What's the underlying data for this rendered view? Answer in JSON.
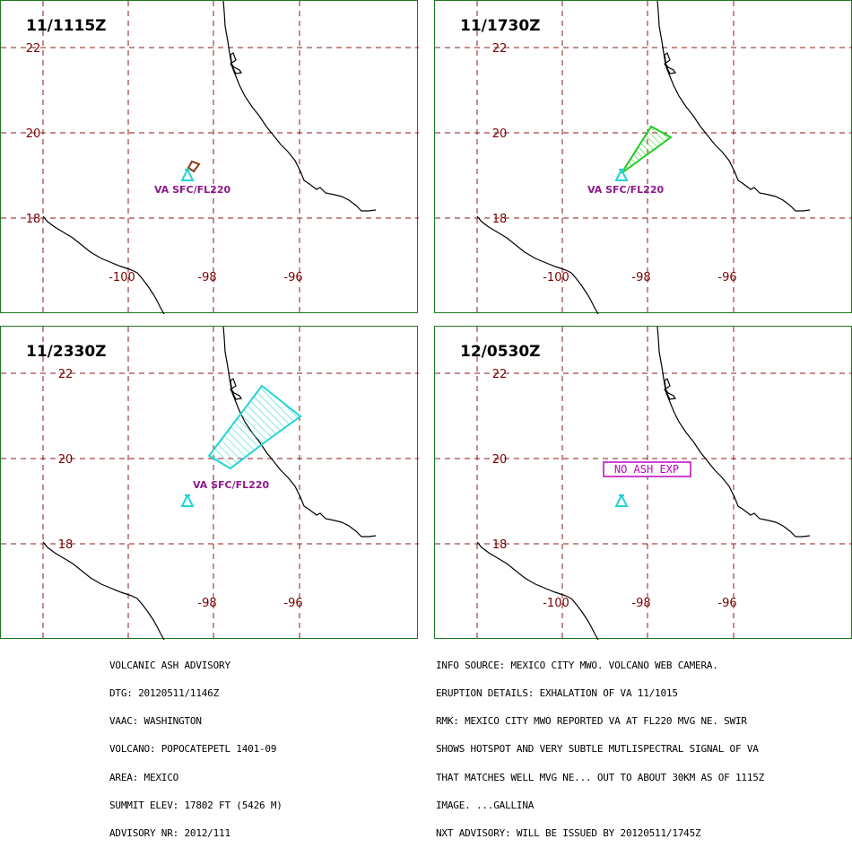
{
  "panels": [
    {
      "title": "11/1115Z",
      "lat_labels": [
        "22",
        "20",
        "18"
      ],
      "lon_labels": [
        "-100",
        "-98",
        "-96"
      ],
      "va_label": "VA SFC/FL220",
      "ash_polygon": {
        "color": "#8b3a1a",
        "hatched": false
      }
    },
    {
      "title": "11/1730Z",
      "lat_labels": [
        "22",
        "20",
        "18"
      ],
      "lon_labels": [
        "-100",
        "-98",
        "-96"
      ],
      "va_label": "VA SFC/FL220",
      "ash_polygon": {
        "color": "#22cc22",
        "hatched": true
      }
    },
    {
      "title": "11/2330Z",
      "lat_labels": [
        "22",
        "20",
        "18"
      ],
      "lon_labels": [
        "-98",
        "-96"
      ],
      "va_label": "VA SFC/FL220",
      "ash_polygon": {
        "color": "#22d4d4",
        "hatched": true
      }
    },
    {
      "title": "12/0530Z",
      "lat_labels": [
        "22",
        "20",
        "18"
      ],
      "lon_labels": [
        "-100",
        "-98",
        "-96"
      ],
      "no_ash_label": "NO ASH EXP"
    }
  ],
  "advisory_left": [
    "VOLCANIC ASH ADVISORY",
    "DTG: 20120511/1146Z",
    "VAAC: WASHINGTON",
    "VOLCANO: POPOCATEPETL 1401-09",
    "AREA: MEXICO",
    "SUMMIT ELEV: 17802 FT (5426 M)",
    "ADVISORY NR: 2012/111"
  ],
  "advisory_right": [
    "INFO SOURCE: MEXICO CITY MWO. VOLCANO WEB CAMERA.",
    "ERUPTION DETAILS: EXHALATION OF VA 11/1015",
    "RMK: MEXICO CITY MWO REPORTED VA AT FL220 MVG NE. SWIR",
    "SHOWS HOTSPOT AND VERY SUBTLE MUTLISPECTRAL SIGNAL OF VA",
    "THAT MATCHES WELL MVG NE... OUT TO ABOUT 30KM AS OF 1115Z",
    "IMAGE. ...GALLINA",
    "NXT ADVISORY: WILL BE ISSUED BY 20120511/1745Z"
  ],
  "colors": {
    "frame": "#1f7a1f",
    "grid": "#8b1a1a",
    "coast": "#000000",
    "volcano": "#22d4d4",
    "label": "#8b1a8b"
  }
}
